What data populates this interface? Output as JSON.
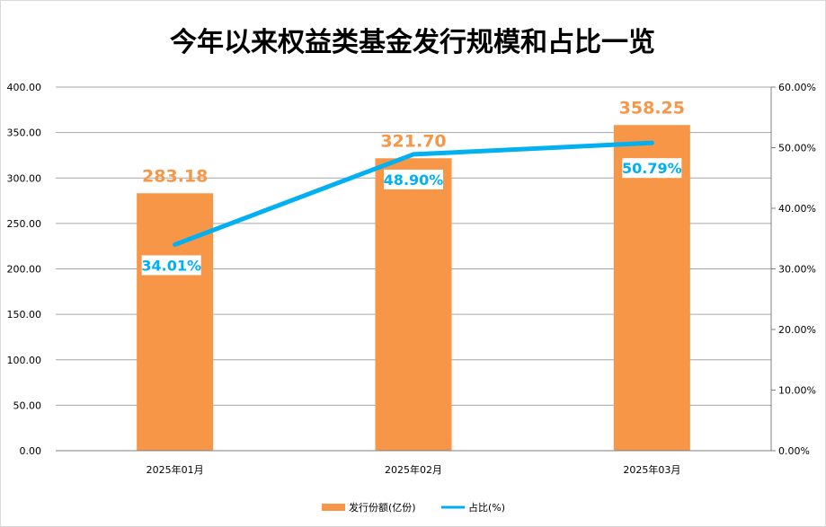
{
  "chart_data": {
    "type": "bar+line",
    "title": "今年以来权益类基金发行规模和占比一览",
    "categories": [
      "2025年01月",
      "2025年02月",
      "2025年03月"
    ],
    "series": [
      {
        "name": "发行份额(亿份)",
        "type": "bar",
        "axis": "left",
        "color": "#F79646",
        "values": [
          283.18,
          321.7,
          358.25
        ],
        "labels": [
          "283.18",
          "321.70",
          "358.25"
        ]
      },
      {
        "name": "占比(%)",
        "type": "line",
        "axis": "right",
        "color": "#00B0F0",
        "values": [
          34.01,
          48.9,
          50.79
        ],
        "labels": [
          "34.01%",
          "48.90%",
          "50.79%"
        ]
      }
    ],
    "left_axis": {
      "min": 0,
      "max": 400,
      "step": 50,
      "ticks": [
        "0.00",
        "50.00",
        "100.00",
        "150.00",
        "200.00",
        "250.00",
        "300.00",
        "350.00",
        "400.00"
      ]
    },
    "right_axis": {
      "min": 0,
      "max": 60,
      "step": 10,
      "ticks": [
        "0.00%",
        "10.00%",
        "20.00%",
        "30.00%",
        "40.00%",
        "50.00%",
        "60.00%"
      ]
    },
    "grid": true,
    "legend": "bottom"
  }
}
